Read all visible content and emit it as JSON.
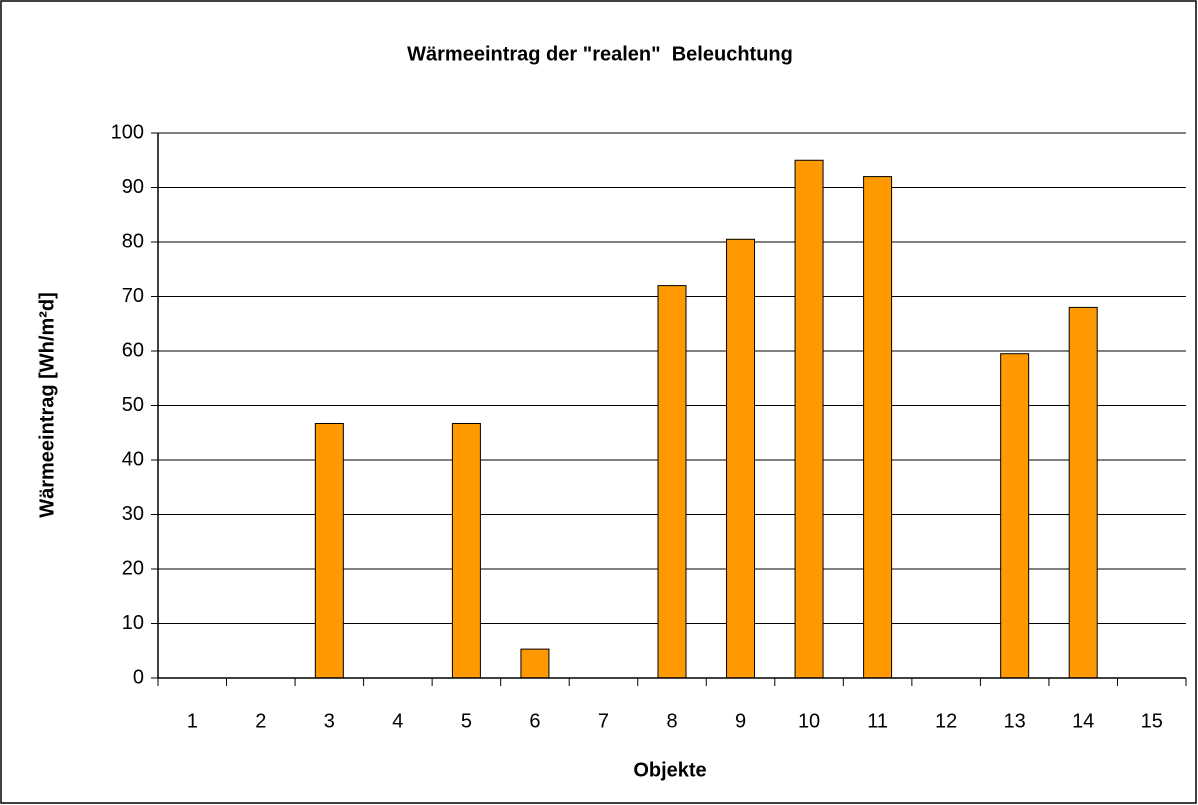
{
  "chart_data": {
    "type": "bar",
    "title": "Wärmeeintrag der \"realen\"  Beleuchtung",
    "x_label": "Objekte",
    "y_label": "Wärmeeintrag [Wh/m²d]",
    "categories": [
      "1",
      "2",
      "3",
      "4",
      "5",
      "6",
      "7",
      "8",
      "9",
      "10",
      "11",
      "12",
      "13",
      "14",
      "15"
    ],
    "values": [
      0,
      0,
      46.7,
      0,
      46.7,
      5.3,
      0,
      72,
      80.5,
      95,
      92,
      0,
      59.5,
      68,
      0
    ],
    "color": "#ff9900",
    "ylim": [
      0,
      100
    ],
    "yticks": [
      0,
      10,
      20,
      30,
      40,
      50,
      60,
      70,
      80,
      90,
      100
    ],
    "grid": true
  }
}
